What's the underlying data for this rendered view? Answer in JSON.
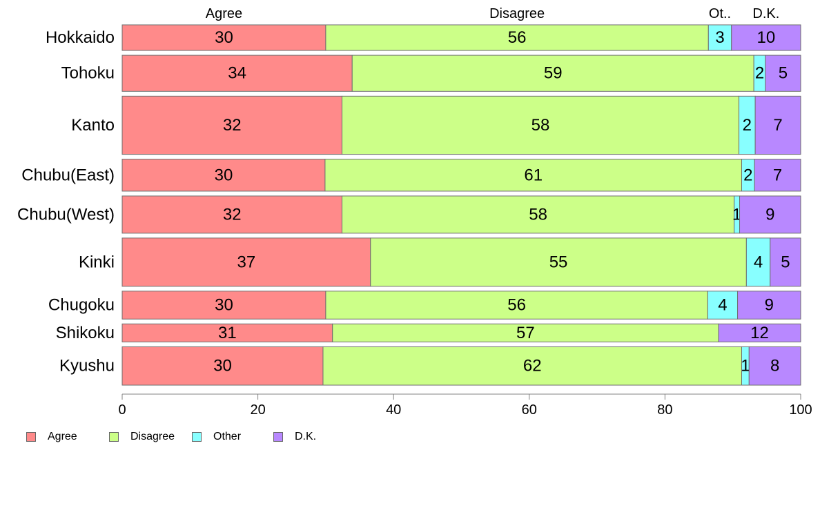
{
  "chart_data": {
    "type": "bar",
    "orientation": "horizontal",
    "stacked": true,
    "column_headers": [
      "Agree",
      "Disagree",
      "Ot..",
      "D.K."
    ],
    "categories": [
      "Hokkaido",
      "Tohoku",
      "Kanto",
      "Chubu(East)",
      "Chubu(West)",
      "Kinki",
      "Chugoku",
      "Shikoku",
      "Kyushu"
    ],
    "relative_bar_width": [
      0.44,
      0.62,
      1.0,
      0.55,
      0.64,
      0.83,
      0.48,
      0.31,
      0.66
    ],
    "series": [
      {
        "name": "Agree",
        "color": "#FF8A8A",
        "values": [
          30,
          34,
          32,
          30,
          32,
          37,
          30,
          31,
          30
        ]
      },
      {
        "name": "Disagree",
        "color": "#CCFF88",
        "values": [
          56,
          59,
          58,
          61,
          58,
          55,
          56,
          57,
          62
        ]
      },
      {
        "name": "Other",
        "color": "#88FFFF",
        "values": [
          3,
          2,
          2,
          2,
          1,
          4,
          4,
          0,
          1
        ]
      },
      {
        "name": "D.K.",
        "color": "#B888FF",
        "values": [
          10,
          5,
          7,
          7,
          9,
          5,
          9,
          12,
          8
        ]
      }
    ],
    "bar_extents": [
      [
        30.0,
        56.4,
        3.4,
        10.2
      ],
      [
        33.9,
        59.2,
        1.7,
        5.2
      ],
      [
        32.4,
        58.5,
        2.4,
        6.7
      ],
      [
        29.9,
        61.4,
        1.9,
        6.8
      ],
      [
        32.4,
        57.8,
        0.8,
        9.0
      ],
      [
        36.6,
        55.4,
        3.5,
        4.5
      ],
      [
        30.0,
        56.3,
        4.4,
        9.3
      ],
      [
        31.0,
        56.9,
        0.0,
        12.1
      ],
      [
        29.6,
        61.7,
        1.1,
        7.6
      ]
    ],
    "xlim": [
      0,
      100
    ],
    "xticks": [
      "0",
      "20",
      "40",
      "60",
      "80",
      "100"
    ],
    "legend": {
      "position": "bottom-left",
      "labels": [
        "Agree",
        "Disagree",
        "Other",
        "D.K."
      ]
    },
    "grid": false
  }
}
